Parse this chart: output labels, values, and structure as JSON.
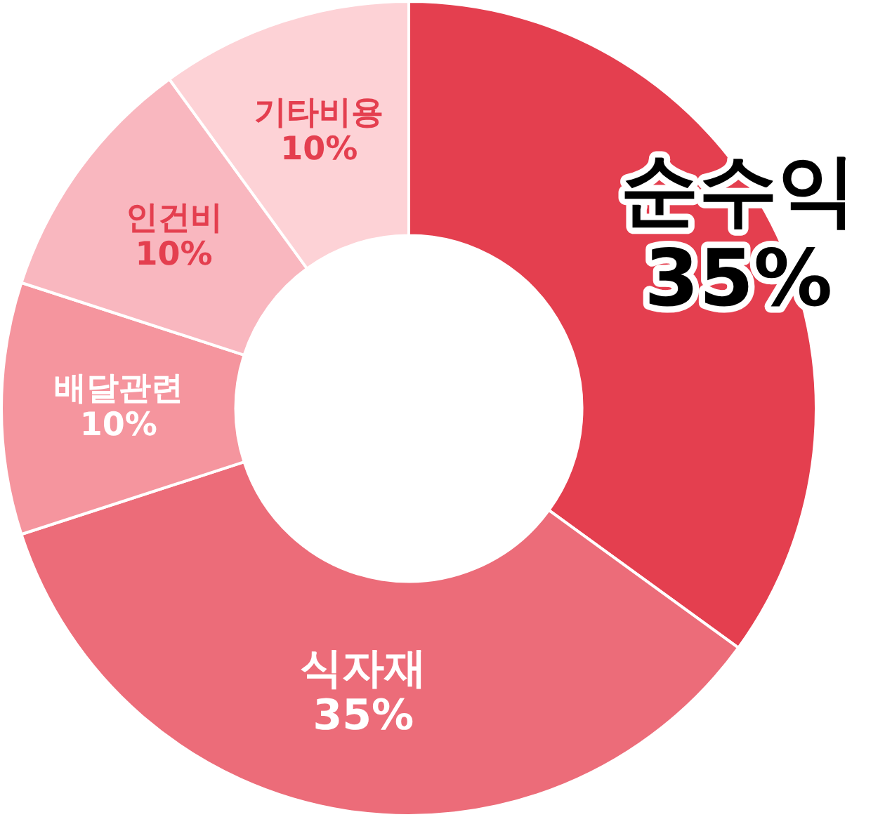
{
  "chart_data": {
    "type": "donut",
    "categories": [
      "순수익",
      "식자재",
      "배달관련",
      "인건비",
      "기타비용"
    ],
    "values": [
      35,
      35,
      10,
      10,
      10
    ],
    "colors": [
      "#e43f4f",
      "#ec6c79",
      "#f5959e",
      "#f9b7bf",
      "#fdd2d6"
    ],
    "value_labels": [
      "35%",
      "35%",
      "10%",
      "10%",
      "10%"
    ],
    "legend": false
  }
}
